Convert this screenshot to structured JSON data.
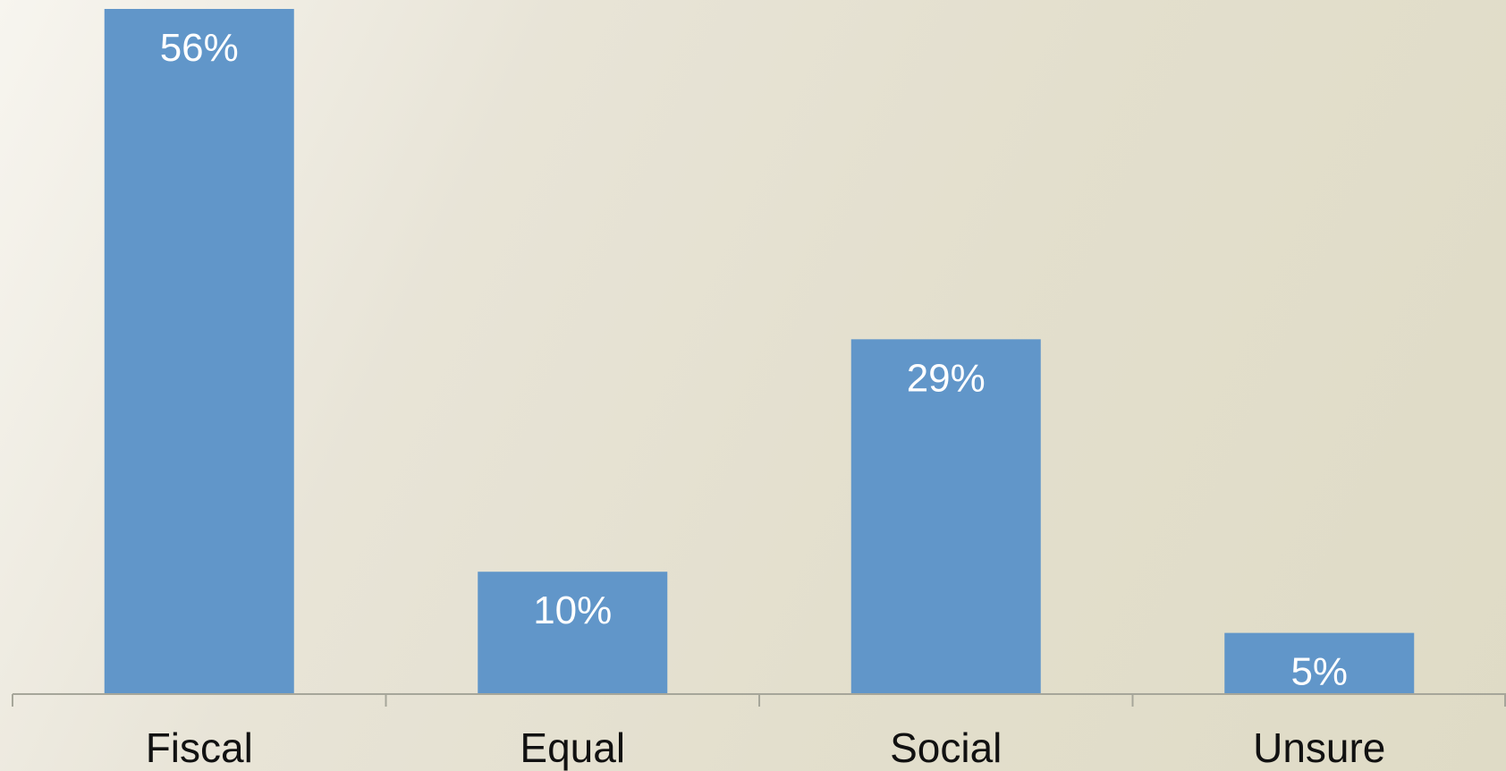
{
  "chart_data": {
    "type": "bar",
    "categories": [
      "Fiscal",
      "Equal",
      "Social",
      "Unsure"
    ],
    "values": [
      56,
      10,
      29,
      5
    ],
    "data_labels": [
      "56%",
      "10%",
      "29%",
      "5%"
    ],
    "title": "",
    "xlabel": "",
    "ylabel": "",
    "ylim": [
      0,
      56
    ],
    "grid": false,
    "legend": "none",
    "colors": {
      "bar": "#6196c9",
      "axis": "#a6a69a",
      "category_text": "#111111",
      "data_label_text": "#ffffff"
    }
  }
}
